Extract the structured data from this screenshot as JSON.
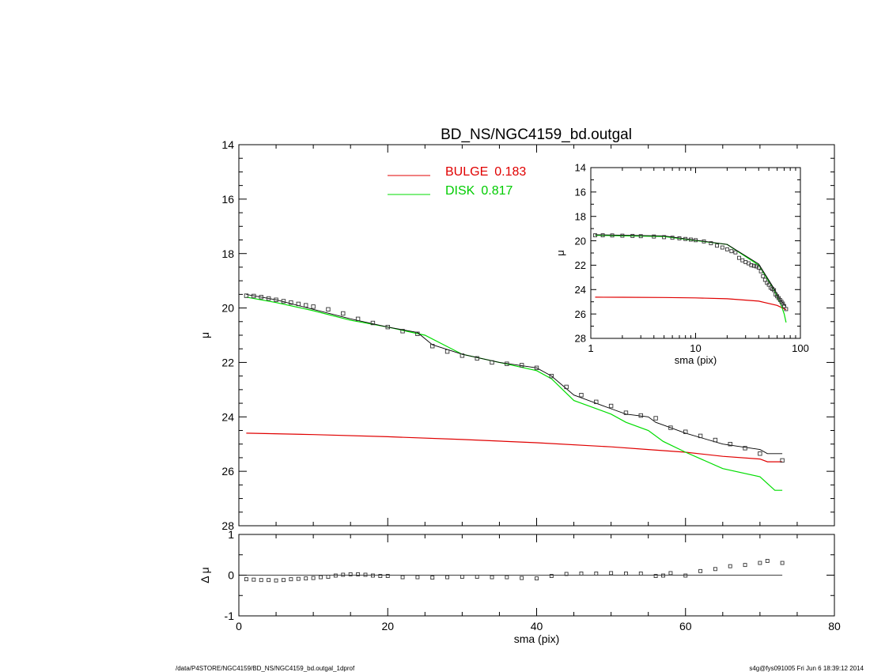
{
  "footer": {
    "left": "/data/P4STORE/NGC4159/BD_NS/NGC4159_bd.outgal_1dprof",
    "right": "s4g@fys091005  Fri Jun  6 18:39:12 2014"
  },
  "colors": {
    "bulge": "#e00000",
    "disk": "#00dd00",
    "model": "#000000",
    "data": "#555555"
  },
  "chart_data": [
    {
      "id": "main",
      "type": "line",
      "title": "BD_NS/NGC4159_bd.outgal",
      "xlabel": "",
      "ylabel": "μ",
      "xlim": [
        0,
        80
      ],
      "ylim": [
        28,
        14
      ],
      "y_inverted": true,
      "yticks": [
        14,
        16,
        18,
        20,
        22,
        24,
        26,
        28
      ],
      "legend": {
        "placement": "top-center",
        "entries": [
          {
            "name": "BULGE",
            "value": "0.183",
            "color": "#e00000"
          },
          {
            "name": "DISK",
            "value": "0.817",
            "color": "#00dd00"
          }
        ]
      },
      "series": [
        {
          "name": "BULGE",
          "x": [
            1,
            10,
            20,
            30,
            40,
            50,
            55,
            60,
            65,
            70,
            71,
            73
          ],
          "y": [
            24.6,
            24.65,
            24.73,
            24.83,
            24.95,
            25.1,
            25.2,
            25.3,
            25.45,
            25.55,
            25.65,
            25.65
          ]
        },
        {
          "name": "DISK",
          "x": [
            1,
            5,
            10,
            15,
            20,
            25,
            30,
            35,
            40,
            42,
            45,
            50,
            52,
            55,
            57,
            60,
            65,
            70,
            72,
            73
          ],
          "y": [
            19.6,
            19.8,
            20.1,
            20.45,
            20.7,
            21.0,
            21.7,
            22.0,
            22.3,
            22.6,
            23.4,
            23.9,
            24.2,
            24.5,
            24.9,
            25.3,
            25.9,
            26.2,
            26.7,
            26.7
          ]
        },
        {
          "name": "total",
          "x": [
            1,
            5,
            10,
            15,
            20,
            24,
            26,
            30,
            35,
            40,
            42,
            45,
            50,
            52,
            55,
            56,
            57,
            60,
            65,
            70,
            71,
            73
          ],
          "y": [
            19.5,
            19.7,
            20.05,
            20.4,
            20.7,
            20.9,
            21.35,
            21.7,
            22.0,
            22.2,
            22.5,
            23.2,
            23.7,
            23.9,
            24.0,
            24.2,
            24.3,
            24.6,
            25.0,
            25.2,
            25.35,
            25.35
          ]
        },
        {
          "name": "data",
          "marker": "square",
          "x": [
            1,
            2,
            3,
            4,
            5,
            6,
            7,
            8,
            9,
            10,
            12,
            14,
            16,
            18,
            20,
            22,
            24,
            26,
            28,
            30,
            32,
            34,
            36,
            38,
            40,
            42,
            44,
            46,
            48,
            50,
            52,
            54,
            56,
            58,
            60,
            62,
            64,
            66,
            68,
            70,
            73
          ],
          "y": [
            19.55,
            19.56,
            19.6,
            19.65,
            19.7,
            19.75,
            19.8,
            19.85,
            19.9,
            19.95,
            20.05,
            20.2,
            20.4,
            20.55,
            20.7,
            20.85,
            20.95,
            21.4,
            21.6,
            21.75,
            21.85,
            22.0,
            22.05,
            22.1,
            22.2,
            22.5,
            22.9,
            23.2,
            23.45,
            23.6,
            23.85,
            23.95,
            24.05,
            24.4,
            24.55,
            24.7,
            24.85,
            25.0,
            25.15,
            25.35,
            25.6
          ]
        }
      ]
    },
    {
      "id": "residual",
      "type": "scatter",
      "xlabel": "sma (pix)",
      "ylabel": "Δ μ",
      "xlim": [
        0,
        80
      ],
      "ylim": [
        -1,
        1
      ],
      "xticks": [
        0,
        20,
        40,
        60,
        80
      ],
      "yticks": [
        -1,
        0,
        1
      ],
      "series": [
        {
          "name": "residual",
          "x": [
            1,
            2,
            3,
            4,
            5,
            6,
            7,
            8,
            9,
            10,
            11,
            12,
            13,
            14,
            15,
            16,
            17,
            18,
            19,
            20,
            22,
            24,
            26,
            28,
            30,
            32,
            34,
            36,
            38,
            40,
            42,
            44,
            46,
            48,
            50,
            52,
            54,
            56,
            57,
            58,
            60,
            62,
            64,
            66,
            68,
            70,
            71,
            73
          ],
          "y": [
            -0.1,
            -0.11,
            -0.12,
            -0.12,
            -0.13,
            -0.12,
            -0.1,
            -0.09,
            -0.08,
            -0.07,
            -0.05,
            -0.04,
            -0.01,
            0.01,
            0.02,
            0.02,
            0.01,
            -0.01,
            -0.02,
            -0.02,
            -0.05,
            -0.05,
            -0.06,
            -0.05,
            -0.04,
            -0.04,
            -0.05,
            -0.05,
            -0.07,
            -0.08,
            -0.02,
            0.03,
            0.04,
            0.04,
            0.05,
            0.04,
            0.04,
            -0.02,
            -0.01,
            0.05,
            -0.01,
            0.1,
            0.15,
            0.22,
            0.25,
            0.3,
            0.35,
            0.3
          ]
        }
      ]
    },
    {
      "id": "inset",
      "type": "line",
      "xlabel": "sma (pix)",
      "ylabel": "μ",
      "xscale": "log",
      "xlim": [
        1,
        100
      ],
      "ylim": [
        28,
        14
      ],
      "y_inverted": true,
      "xticks": [
        1,
        10,
        100
      ],
      "yticks": [
        14,
        16,
        18,
        20,
        22,
        24,
        26,
        28
      ],
      "series": [
        {
          "name": "BULGE",
          "x": [
            1.1,
            2,
            5,
            10,
            20,
            40,
            60,
            73
          ],
          "y": [
            24.62,
            24.63,
            24.65,
            24.68,
            24.75,
            24.95,
            25.3,
            25.65
          ]
        },
        {
          "name": "DISK",
          "x": [
            1.1,
            5,
            20,
            40,
            55,
            65,
            70,
            73
          ],
          "y": [
            19.55,
            19.65,
            20.3,
            22.0,
            23.9,
            25.2,
            26.0,
            26.7
          ]
        },
        {
          "name": "total",
          "x": [
            1.1,
            5,
            20,
            40,
            55,
            65,
            70,
            73
          ],
          "y": [
            19.5,
            19.6,
            20.3,
            21.9,
            23.8,
            24.9,
            25.2,
            25.4
          ]
        },
        {
          "name": "data",
          "marker": "square",
          "x": [
            1.1,
            1.3,
            1.6,
            2,
            2.5,
            3,
            4,
            5,
            6,
            7,
            8,
            9,
            10,
            12,
            14,
            16,
            18,
            20,
            22,
            24,
            26,
            28,
            30,
            32,
            34,
            36,
            38,
            40,
            42,
            44,
            46,
            48,
            50,
            52,
            54,
            56,
            58,
            60,
            62,
            64,
            66,
            68,
            70,
            73
          ],
          "y": [
            19.55,
            19.55,
            19.56,
            19.58,
            19.6,
            19.62,
            19.65,
            19.7,
            19.75,
            19.8,
            19.85,
            19.9,
            19.95,
            20.05,
            20.2,
            20.4,
            20.55,
            20.7,
            20.85,
            20.95,
            21.4,
            21.6,
            21.75,
            21.85,
            22.0,
            22.05,
            22.1,
            22.2,
            22.5,
            22.9,
            23.2,
            23.45,
            23.6,
            23.85,
            23.95,
            24.05,
            24.4,
            24.55,
            24.7,
            24.85,
            25.0,
            25.15,
            25.35,
            25.6
          ]
        }
      ]
    }
  ]
}
